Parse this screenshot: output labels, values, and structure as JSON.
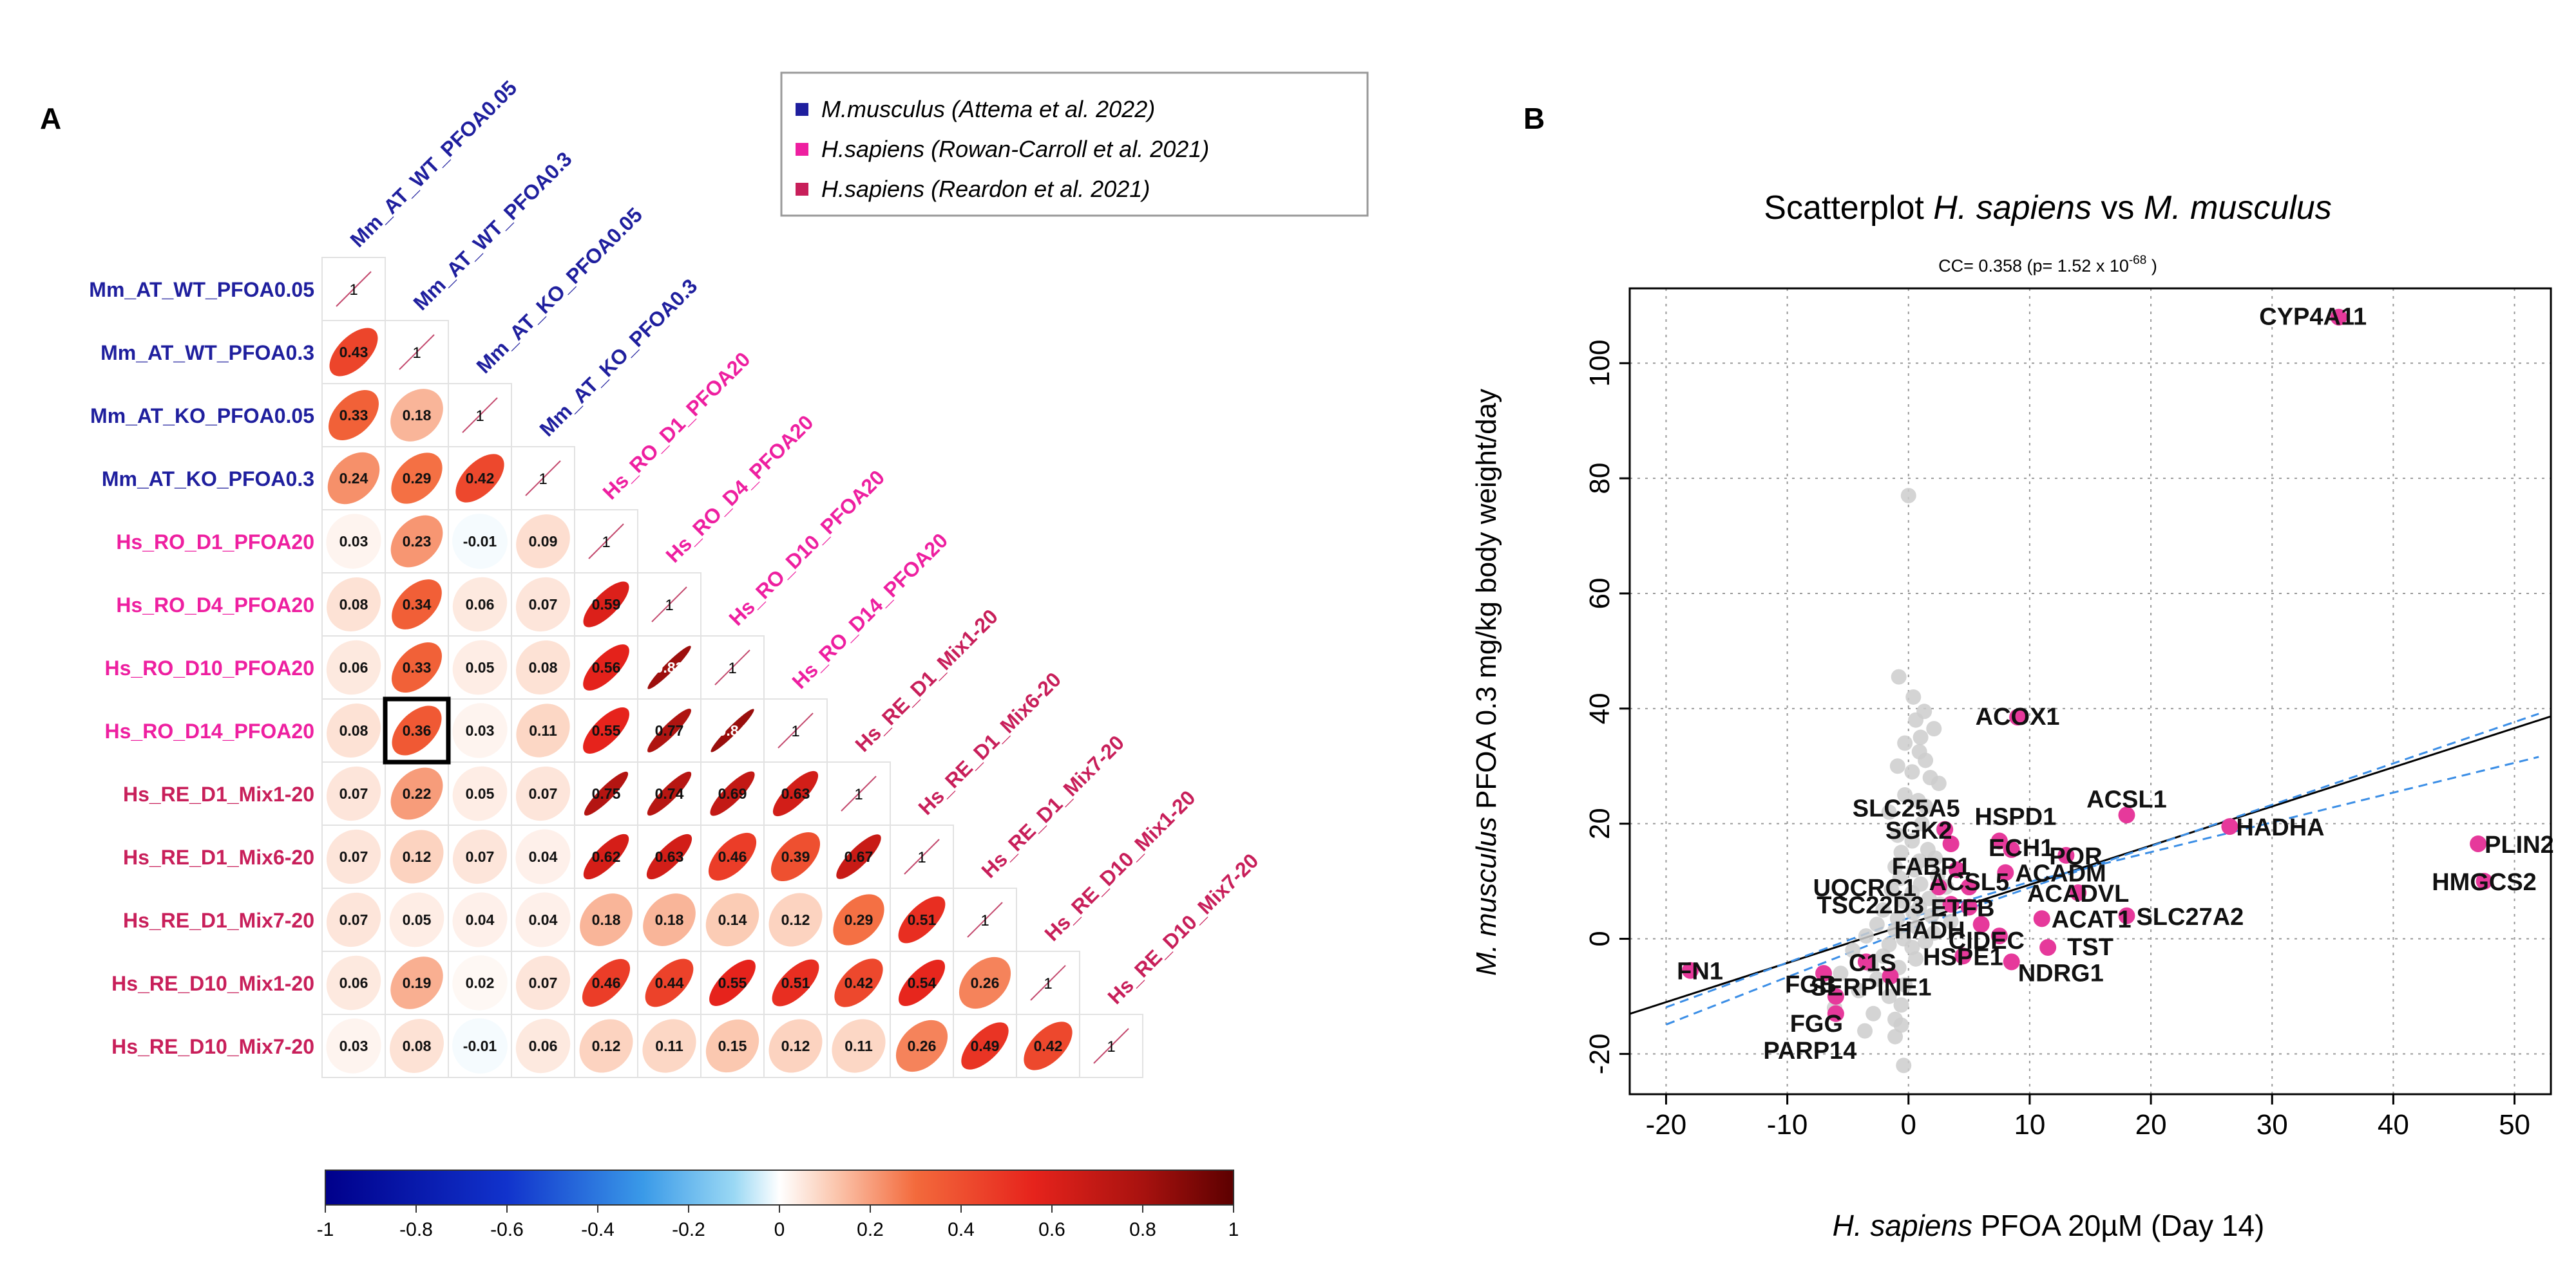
{
  "colors": {
    "mouse": "#1f1f9e",
    "rowan": "#ee1fa0",
    "reardon": "#c81f5a",
    "highlight_point": "#e6399b",
    "bg_point": "#cccccc",
    "fit_line": "#000000",
    "ci_line": "#3b8ee6"
  },
  "panel_a": {
    "label": "A",
    "legend": [
      {
        "species": "M.musculus",
        "ref": " (Attema et al. 2022)",
        "color": "#1f1f9e"
      },
      {
        "species": "H.sapiens",
        "ref": " (Rowan-Carroll et al. 2021)",
        "color": "#ee1fa0"
      },
      {
        "species": "H.sapiens",
        "ref": " (Reardon et al. 2021)",
        "color": "#c81f5a"
      }
    ],
    "highlight": {
      "row": "Hs_RO_D14_PFOA20",
      "col": "Mm_AT_WT_PFOA0.3"
    },
    "colorbar": {
      "ticks": [
        "-1",
        "-0.8",
        "-0.6",
        "-0.4",
        "-0.2",
        "0",
        "0.2",
        "0.4",
        "0.6",
        "0.8",
        "1"
      ]
    }
  },
  "panel_b": {
    "label": "B",
    "title_prefix": "Scatterplot ",
    "title_sp1": "H. sapiens",
    "title_mid": " vs ",
    "title_sp2": "M. musculus",
    "cc_text": "CC= 0.358  (p= 1.52 x 10",
    "cc_exp": "-68",
    "cc_close": " )",
    "xlabel_species": "H. sapiens",
    "xlabel_rest": " PFOA 20µM (Day 14)",
    "ylabel_species": "M. musculus",
    "ylabel_rest": " PFOA 0.3 mg/kg body weight/day"
  },
  "chart_data": [
    {
      "type": "heatmap",
      "title": "",
      "labels": [
        "Mm_AT_WT_PFOA0.05",
        "Mm_AT_WT_PFOA0.3",
        "Mm_AT_KO_PFOA0.05",
        "Mm_AT_KO_PFOA0.3",
        "Hs_RO_D1_PFOA20",
        "Hs_RO_D4_PFOA20",
        "Hs_RO_D10_PFOA20",
        "Hs_RO_D14_PFOA20",
        "Hs_RE_D1_Mix1-20",
        "Hs_RE_D1_Mix6-20",
        "Hs_RE_D1_Mix7-20",
        "Hs_RE_D10_Mix1-20",
        "Hs_RE_D10_Mix7-20"
      ],
      "label_group": [
        "mouse",
        "mouse",
        "mouse",
        "mouse",
        "rowan",
        "rowan",
        "rowan",
        "rowan",
        "reardon",
        "reardon",
        "reardon",
        "reardon",
        "reardon"
      ],
      "lower_triangle": [
        [],
        [
          "0.43"
        ],
        [
          "0.33",
          "0.18"
        ],
        [
          "0.24",
          "0.29",
          "0.42"
        ],
        [
          "0.03",
          "0.23",
          "-0.01",
          "0.09"
        ],
        [
          "0.08",
          "0.34",
          "0.06",
          "0.07",
          "0.59"
        ],
        [
          "0.06",
          "0.33",
          "0.05",
          "0.08",
          "0.56",
          "0.83"
        ],
        [
          "0.08",
          "0.36",
          "0.03",
          "0.11",
          "0.55",
          "0.77",
          "0.84"
        ],
        [
          "0.07",
          "0.22",
          "0.05",
          "0.07",
          "0.75",
          "0.74",
          "0.69",
          "0.63"
        ],
        [
          "0.07",
          "0.12",
          "0.07",
          "0.04",
          "0.62",
          "0.63",
          "0.46",
          "0.39",
          "0.67"
        ],
        [
          "0.07",
          "0.05",
          "0.04",
          "0.04",
          "0.18",
          "0.18",
          "0.14",
          "0.12",
          "0.29",
          "0.51"
        ],
        [
          "0.06",
          "0.19",
          "0.02",
          "0.07",
          "0.46",
          "0.44",
          "0.55",
          "0.51",
          "0.42",
          "0.54",
          "0.26"
        ],
        [
          "0.03",
          "0.08",
          "-0.01",
          "0.06",
          "0.12",
          "0.11",
          "0.15",
          "0.12",
          "0.11",
          "0.26",
          "0.49",
          "0.42"
        ]
      ],
      "diagonal_label": "1",
      "colorbar_range": [
        -1,
        1
      ]
    },
    {
      "type": "scatter",
      "title": "Scatterplot H. sapiens vs M. musculus",
      "xlabel": "H. sapiens PFOA 20µM (Day 14)",
      "ylabel": "M. musculus PFOA 0.3 mg/kg body weight/day",
      "xlim": [
        -23,
        53
      ],
      "ylim": [
        -27,
        113
      ],
      "xticks": [
        -20,
        -10,
        0,
        10,
        20,
        30,
        40,
        50
      ],
      "yticks": [
        -20,
        0,
        20,
        40,
        60,
        80,
        100
      ],
      "grid": true,
      "fit_line": {
        "intercept": 2.6,
        "slope": 0.68
      },
      "ci_lines": [
        {
          "points": [
            [
              -20,
              -14.9
            ],
            [
              0,
              1.6
            ],
            [
              10,
              8.9
            ],
            [
              52,
              39.1
            ]
          ]
        },
        {
          "points": [
            [
              -20,
              -11.9
            ],
            [
              0,
              3.6
            ],
            [
              10,
              9.9
            ],
            [
              52,
              31.6
            ]
          ]
        }
      ],
      "background_points": [
        [
          0,
          77
        ],
        [
          -0.8,
          45.5
        ],
        [
          0.4,
          42
        ],
        [
          1.3,
          39.5
        ],
        [
          0.6,
          38
        ],
        [
          2.1,
          36.5
        ],
        [
          1.0,
          35
        ],
        [
          -0.3,
          34
        ],
        [
          0.9,
          32.5
        ],
        [
          1.4,
          31
        ],
        [
          -0.9,
          30
        ],
        [
          0.3,
          29
        ],
        [
          1.8,
          28
        ],
        [
          2.5,
          27
        ],
        [
          -0.3,
          25
        ],
        [
          0.8,
          24
        ],
        [
          1.4,
          23
        ],
        [
          -1.6,
          22
        ],
        [
          1.1,
          20
        ],
        [
          2.9,
          19
        ],
        [
          -0.9,
          18
        ],
        [
          0.3,
          17
        ],
        [
          1.6,
          15.5
        ],
        [
          -0.6,
          15
        ],
        [
          2.2,
          14
        ],
        [
          0.9,
          13.5
        ],
        [
          -1.1,
          12.5
        ],
        [
          0.5,
          12
        ],
        [
          2.4,
          11
        ],
        [
          -0.7,
          10.5
        ],
        [
          1.0,
          9.5
        ],
        [
          3.1,
          9
        ],
        [
          -1.4,
          8.5
        ],
        [
          0.3,
          8
        ],
        [
          1.7,
          7
        ],
        [
          -0.4,
          6.5
        ],
        [
          2.6,
          6
        ],
        [
          0.9,
          5.5
        ],
        [
          -2.1,
          5
        ],
        [
          0.4,
          4.5
        ],
        [
          1.9,
          4
        ],
        [
          -0.9,
          3.5
        ],
        [
          3.5,
          3
        ],
        [
          -2.6,
          2.5
        ],
        [
          0.7,
          2
        ],
        [
          -1.1,
          1.5
        ],
        [
          2.1,
          1
        ],
        [
          -3.5,
          0.5
        ],
        [
          -0.4,
          0
        ],
        [
          1.4,
          -0.5
        ],
        [
          -1.6,
          -1
        ],
        [
          0.3,
          -1.5
        ],
        [
          -4.6,
          -2
        ],
        [
          -2.1,
          -3
        ],
        [
          0.6,
          -3.5
        ],
        [
          -3.1,
          -4.5
        ],
        [
          -0.8,
          -5
        ],
        [
          -5.6,
          -6
        ],
        [
          -2.6,
          -7
        ],
        [
          -0.3,
          -8
        ],
        [
          -4.1,
          -9
        ],
        [
          -1.6,
          -10
        ],
        [
          -0.6,
          -11.5
        ],
        [
          -6.1,
          -12
        ],
        [
          -2.9,
          -13
        ],
        [
          -1.1,
          -14
        ],
        [
          -0.6,
          -15
        ],
        [
          -3.6,
          -16
        ],
        [
          -1.1,
          -17
        ],
        [
          -0.4,
          -22
        ]
      ],
      "highlighted_points": [
        {
          "label": "CYP4A11",
          "x": 35.5,
          "y": 108
        },
        {
          "label": "ACOX1",
          "x": 9,
          "y": 38.5
        },
        {
          "label": "SLC25A5",
          "x": 3,
          "y": 19
        },
        {
          "label": "SGK2",
          "x": 3.5,
          "y": 16.5
        },
        {
          "label": "HSPD1",
          "x": 7.5,
          "y": 17
        },
        {
          "label": "ECH1",
          "x": 8.5,
          "y": 15.5
        },
        {
          "label": "ACSL1",
          "x": 18,
          "y": 21.5
        },
        {
          "label": "POR",
          "x": 13,
          "y": 14.5
        },
        {
          "label": "HADHA",
          "x": 26.5,
          "y": 19.5
        },
        {
          "label": "PLIN2",
          "x": 47,
          "y": 16.5
        },
        {
          "label": "HMGCS2",
          "x": 47.5,
          "y": 10
        },
        {
          "label": "FABP1",
          "x": 4,
          "y": 12
        },
        {
          "label": "ACADM",
          "x": 8,
          "y": 11.5
        },
        {
          "label": "ACSL5",
          "x": 5,
          "y": 9
        },
        {
          "label": "ACADVL",
          "x": 14,
          "y": 8
        },
        {
          "label": "UQCRC1",
          "x": 2.5,
          "y": 9
        },
        {
          "label": "SLC27A2",
          "x": 18,
          "y": 4
        },
        {
          "label": "TSC22D3",
          "x": 3.5,
          "y": 6
        },
        {
          "label": "ETFB",
          "x": 5,
          "y": 5.5
        },
        {
          "label": "HADH",
          "x": 6,
          "y": 2.5
        },
        {
          "label": "ACAT1",
          "x": 11,
          "y": 3.5
        },
        {
          "label": "CIDEC",
          "x": 7.5,
          "y": 0.5
        },
        {
          "label": "TST",
          "x": 11.5,
          "y": -1.5
        },
        {
          "label": "NDRG1",
          "x": 8.5,
          "y": -4
        },
        {
          "label": "C1S",
          "x": -3.5,
          "y": -4
        },
        {
          "label": "HSPE1",
          "x": 4.5,
          "y": -3
        },
        {
          "label": "FN1",
          "x": -18,
          "y": -5.5
        },
        {
          "label": "FGB",
          "x": -7,
          "y": -6
        },
        {
          "label": "SERPINE1",
          "x": -1.5,
          "y": -6.5
        },
        {
          "label": "FGG",
          "x": -6,
          "y": -10
        },
        {
          "label": "PARP14",
          "x": -6,
          "y": -13
        }
      ]
    }
  ]
}
